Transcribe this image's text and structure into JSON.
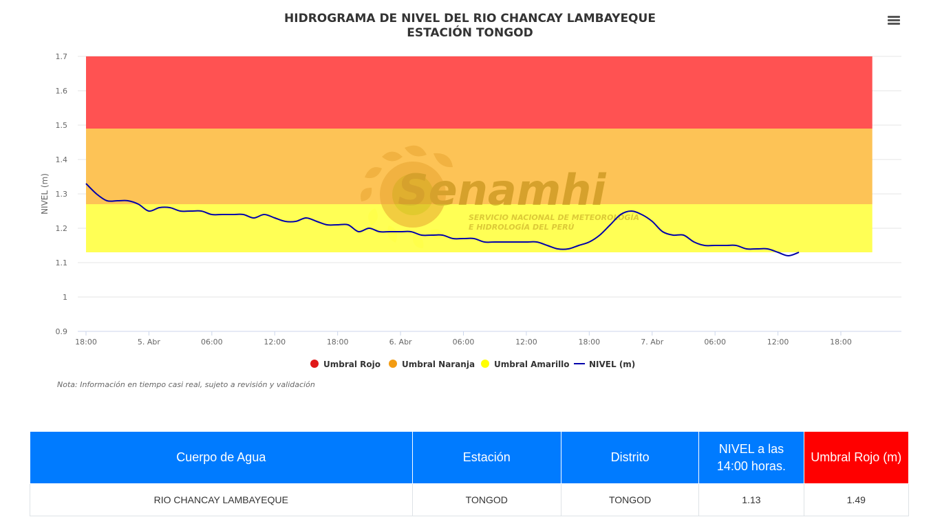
{
  "chart_data": {
    "type": "line",
    "title": "HIDROGRAMA DE NIVEL DEL RIO CHANCAY LAMBAYEQUE",
    "subtitle": "ESTACIÓN TONGOD",
    "ylabel": "NIVEL (m)",
    "ylim": [
      0.9,
      1.7
    ],
    "yticks": [
      "0.9",
      "1",
      "1.1",
      "1.2",
      "1.3",
      "1.4",
      "1.5",
      "1.6",
      "1.7"
    ],
    "xlim": [
      "2024-04-04 18:00",
      "2024-04-07 21:00"
    ],
    "xticks": [
      {
        "t": "2024-04-04 18:00",
        "label": "18:00"
      },
      {
        "t": "2024-04-05 00:00",
        "label": "5. Abr"
      },
      {
        "t": "2024-04-05 06:00",
        "label": "06:00"
      },
      {
        "t": "2024-04-05 12:00",
        "label": "12:00"
      },
      {
        "t": "2024-04-05 18:00",
        "label": "18:00"
      },
      {
        "t": "2024-04-06 00:00",
        "label": "6. Abr"
      },
      {
        "t": "2024-04-06 06:00",
        "label": "06:00"
      },
      {
        "t": "2024-04-06 12:00",
        "label": "12:00"
      },
      {
        "t": "2024-04-06 18:00",
        "label": "18:00"
      },
      {
        "t": "2024-04-07 00:00",
        "label": "7. Abr"
      },
      {
        "t": "2024-04-07 06:00",
        "label": "06:00"
      },
      {
        "t": "2024-04-07 12:00",
        "label": "12:00"
      },
      {
        "t": "2024-04-07 18:00",
        "label": "18:00"
      }
    ],
    "bands": [
      {
        "name": "Umbral Rojo",
        "from": 1.49,
        "to": 1.7,
        "color": "#ff5252"
      },
      {
        "name": "Umbral Naranja",
        "from": 1.27,
        "to": 1.49,
        "color": "#fdc356"
      },
      {
        "name": "Umbral Amarillo",
        "from": 1.13,
        "to": 1.27,
        "color": "#ffff55"
      }
    ],
    "series": [
      {
        "name": "NIVEL (m)",
        "color": "#0000aa",
        "x": [
          "2024-04-04 18:00",
          "2024-04-04 19:00",
          "2024-04-04 20:00",
          "2024-04-04 21:00",
          "2024-04-04 22:00",
          "2024-04-04 23:00",
          "2024-04-05 00:00",
          "2024-04-05 01:00",
          "2024-04-05 02:00",
          "2024-04-05 03:00",
          "2024-04-05 04:00",
          "2024-04-05 05:00",
          "2024-04-05 06:00",
          "2024-04-05 07:00",
          "2024-04-05 08:00",
          "2024-04-05 09:00",
          "2024-04-05 10:00",
          "2024-04-05 11:00",
          "2024-04-05 12:00",
          "2024-04-05 13:00",
          "2024-04-05 14:00",
          "2024-04-05 15:00",
          "2024-04-05 16:00",
          "2024-04-05 17:00",
          "2024-04-05 18:00",
          "2024-04-05 19:00",
          "2024-04-05 20:00",
          "2024-04-05 21:00",
          "2024-04-05 22:00",
          "2024-04-05 23:00",
          "2024-04-06 00:00",
          "2024-04-06 01:00",
          "2024-04-06 02:00",
          "2024-04-06 03:00",
          "2024-04-06 04:00",
          "2024-04-06 05:00",
          "2024-04-06 06:00",
          "2024-04-06 07:00",
          "2024-04-06 08:00",
          "2024-04-06 09:00",
          "2024-04-06 10:00",
          "2024-04-06 11:00",
          "2024-04-06 12:00",
          "2024-04-06 13:00",
          "2024-04-06 14:00",
          "2024-04-06 15:00",
          "2024-04-06 16:00",
          "2024-04-06 17:00",
          "2024-04-06 18:00",
          "2024-04-06 19:00",
          "2024-04-06 20:00",
          "2024-04-06 21:00",
          "2024-04-06 22:00",
          "2024-04-06 23:00",
          "2024-04-07 00:00",
          "2024-04-07 01:00",
          "2024-04-07 02:00",
          "2024-04-07 03:00",
          "2024-04-07 04:00",
          "2024-04-07 05:00",
          "2024-04-07 06:00",
          "2024-04-07 07:00",
          "2024-04-07 08:00",
          "2024-04-07 09:00",
          "2024-04-07 10:00",
          "2024-04-07 11:00",
          "2024-04-07 12:00",
          "2024-04-07 13:00",
          "2024-04-07 14:00"
        ],
        "values": [
          1.33,
          1.3,
          1.28,
          1.28,
          1.28,
          1.27,
          1.25,
          1.26,
          1.26,
          1.25,
          1.25,
          1.25,
          1.24,
          1.24,
          1.24,
          1.24,
          1.23,
          1.24,
          1.23,
          1.22,
          1.22,
          1.23,
          1.22,
          1.21,
          1.21,
          1.21,
          1.19,
          1.2,
          1.19,
          1.19,
          1.19,
          1.19,
          1.18,
          1.18,
          1.18,
          1.17,
          1.17,
          1.17,
          1.16,
          1.16,
          1.16,
          1.16,
          1.16,
          1.16,
          1.15,
          1.14,
          1.14,
          1.15,
          1.16,
          1.18,
          1.21,
          1.24,
          1.25,
          1.24,
          1.22,
          1.19,
          1.18,
          1.18,
          1.16,
          1.15,
          1.15,
          1.15,
          1.15,
          1.14,
          1.14,
          1.14,
          1.13,
          1.12,
          1.13
        ]
      }
    ],
    "legend": [
      {
        "name": "Umbral Rojo",
        "color": "#e01818",
        "symbol": "circle"
      },
      {
        "name": "Umbral Naranja",
        "color": "#f39c12",
        "symbol": "circle"
      },
      {
        "name": "Umbral Amarillo",
        "color": "#ffff00",
        "symbol": "circle"
      },
      {
        "name": "NIVEL (m)",
        "color": "#0000aa",
        "symbol": "line"
      }
    ],
    "legend_position": "bottom-center",
    "note": "Nota: Información en tiempo casi real, sujeto a revisión y validación",
    "grid": true
  },
  "watermark": {
    "brand": "Senamhi",
    "tagline_1": "SERVICIO NACIONAL DE METEOROLOGÍA",
    "tagline_2": "E HIDROLOGÍA DEL PERÚ"
  },
  "table": {
    "headers": [
      "Cuerpo de Agua",
      "Estación",
      "Distrito",
      "NIVEL a las 14:00 horas.",
      "Umbral Rojo (m)"
    ],
    "header_red_color": "#ff0000",
    "header_color": "#007bff",
    "row": [
      "RIO CHANCAY LAMBAYEQUE",
      "TONGOD",
      "TONGOD",
      "1.13",
      "1.49"
    ]
  },
  "menu": {
    "icon": "hamburger-menu-icon"
  }
}
